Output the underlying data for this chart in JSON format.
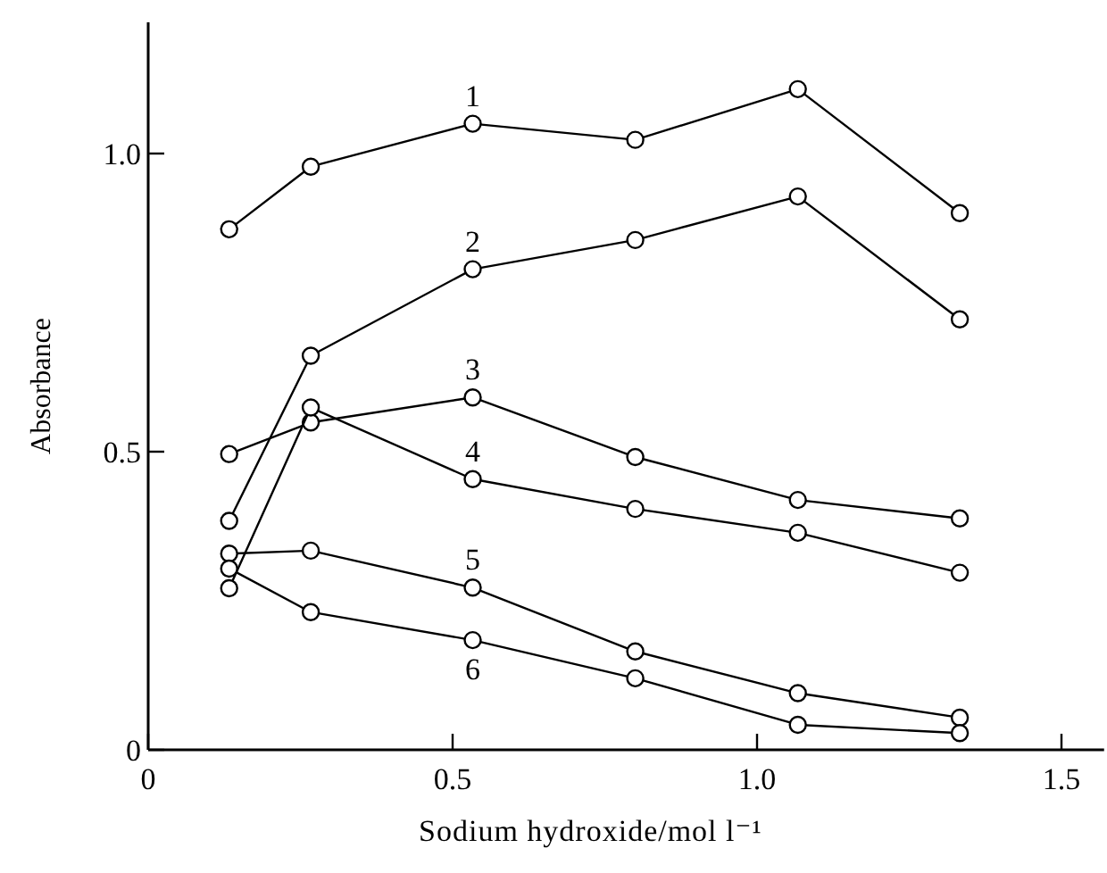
{
  "chart_data": {
    "type": "line",
    "xlabel": "Sodium hydroxide/mol l⁻¹",
    "ylabel": "Absorbance",
    "x": [
      0.133,
      0.267,
      0.533,
      0.8,
      1.067,
      1.333
    ],
    "xlim": [
      0,
      1.57
    ],
    "xticks": [
      0,
      0.5,
      {
        "value": 1,
        "label": "1.0"
      },
      1.5
    ],
    "ylim": [
      0,
      1.22
    ],
    "yticks": [
      0,
      0.5,
      {
        "value": 1,
        "label": "1.0"
      }
    ],
    "marker": "circle",
    "line_style": "solid",
    "grid": false,
    "series": [
      {
        "name": "1",
        "color": "#000000",
        "values": [
          0.873,
          0.978,
          1.05,
          1.023,
          1.108,
          0.9
        ]
      },
      {
        "name": "2",
        "color": "#000000",
        "values": [
          0.384,
          0.661,
          0.806,
          0.855,
          0.928,
          0.722
        ]
      },
      {
        "name": "3",
        "color": "#000000",
        "values": [
          0.496,
          0.549,
          0.591,
          0.491,
          0.419,
          0.388
        ]
      },
      {
        "name": "4",
        "color": "#000000",
        "values": [
          0.271,
          0.574,
          0.454,
          0.404,
          0.364,
          0.297
        ]
      },
      {
        "name": "5",
        "color": "#000000",
        "values": [
          0.329,
          0.334,
          0.272,
          0.165,
          0.095,
          0.054
        ]
      },
      {
        "name": "6",
        "color": "#000000",
        "values": [
          0.304,
          0.231,
          0.184,
          0.12,
          0.042,
          0.028
        ]
      }
    ]
  }
}
